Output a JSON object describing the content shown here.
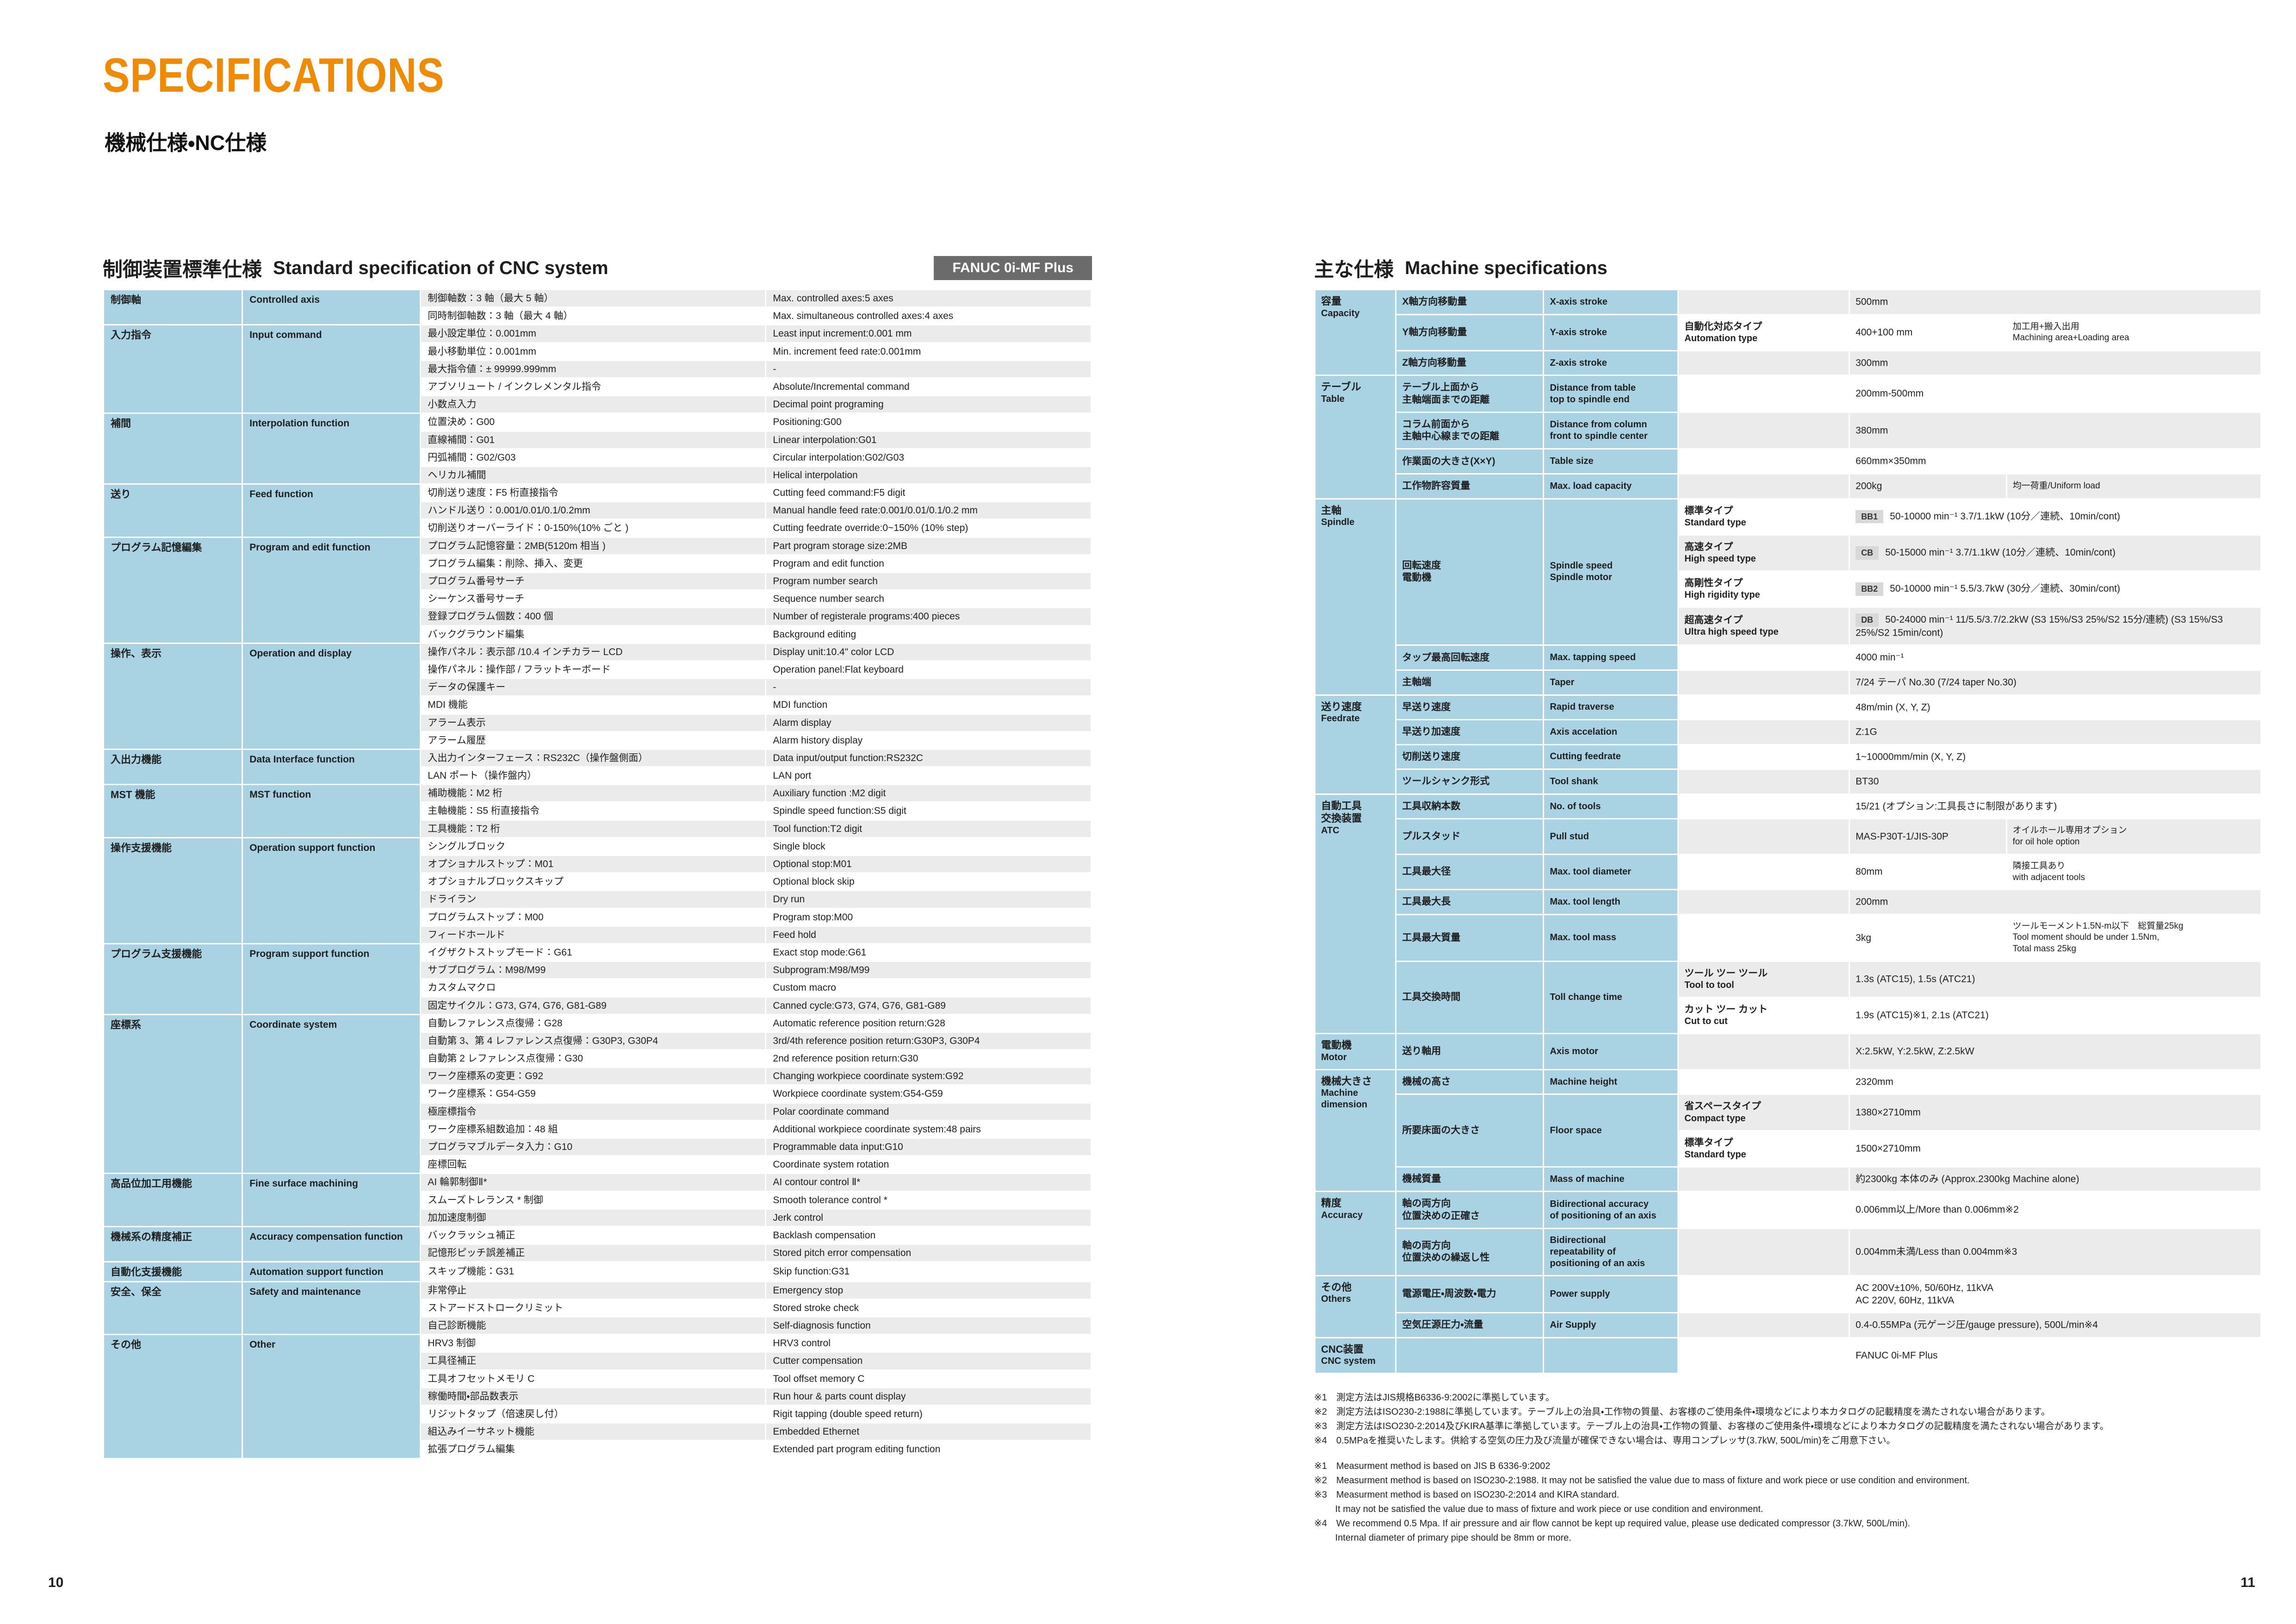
{
  "page": {
    "title": "SPECIFICATIONS",
    "subtitle": "機械仕様・NC仕様",
    "page_no_left": "10",
    "page_no_right": "11"
  },
  "colors": {
    "accent_orange": "#F08A00",
    "table_blue": "#A9D3E2",
    "stripe_gray": "#EBEBEB",
    "badge_gray": "#6B6B6B",
    "chip_gray": "#D8D8D8"
  },
  "cnc_table": {
    "heading_jp": "制御装置標準仕様",
    "heading_en": "Standard specification of CNC system",
    "badge": "FANUC 0i-MF Plus",
    "groups": [
      {
        "jp": "制御軸",
        "en": "Controlled axis",
        "rows": [
          [
            "制御軸数：3 軸（最大 5 軸）",
            "Max. controlled axes:5 axes"
          ],
          [
            "同時制御軸数：3 軸（最大 4 軸）",
            "Max. simultaneous controlled axes:4 axes"
          ]
        ]
      },
      {
        "jp": "入力指令",
        "en": "Input command",
        "rows": [
          [
            "最小設定単位：0.001mm",
            "Least input increment:0.001 mm"
          ],
          [
            "最小移動単位：0.001mm",
            "Min. increment feed rate:0.001mm"
          ],
          [
            "最大指令値：± 99999.999mm",
            "-"
          ],
          [
            "アブソリュート / インクレメンタル指令",
            "Absolute/Incremental command"
          ],
          [
            "小数点入力",
            "Decimal point programing"
          ]
        ]
      },
      {
        "jp": "補間",
        "en": "Interpolation function",
        "rows": [
          [
            "位置決め：G00",
            "Positioning:G00"
          ],
          [
            "直線補間：G01",
            "Linear interpolation:G01"
          ],
          [
            "円弧補間：G02/G03",
            "Circular interpolation:G02/G03"
          ],
          [
            "ヘリカル補間",
            "Helical interpolation"
          ]
        ]
      },
      {
        "jp": "送り",
        "en": "Feed function",
        "rows": [
          [
            "切削送り速度：F5 桁直接指令",
            "Cutting feed command:F5 digit"
          ],
          [
            "ハンドル送り：0.001/0.01/0.1/0.2mm",
            "Manual handle feed rate:0.001/0.01/0.1/0.2 mm"
          ],
          [
            "切削送りオーバーライド：0-150%(10% ごと )",
            "Cutting feedrate override:0~150% (10% step)"
          ]
        ]
      },
      {
        "jp": "プログラム記憶編集",
        "en": "Program and edit function",
        "rows": [
          [
            "プログラム記憶容量：2MB(5120m 相当 )",
            "Part program storage size:2MB"
          ],
          [
            "プログラム編集：削除、挿入、変更",
            "Program and edit function"
          ],
          [
            "プログラム番号サーチ",
            "Program number search"
          ],
          [
            "シーケンス番号サーチ",
            "Sequence number search"
          ],
          [
            "登録プログラム個数：400 個",
            "Number of registerale programs:400 pieces"
          ],
          [
            "バックグラウンド編集",
            "Background editing"
          ]
        ]
      },
      {
        "jp": "操作、表示",
        "en": "Operation and display",
        "rows": [
          [
            "操作パネル：表示部 /10.4 インチカラー LCD",
            "Display unit:10.4\" color LCD"
          ],
          [
            "操作パネル：操作部 / フラットキーボード",
            "Operation panel:Flat keyboard"
          ],
          [
            "データの保護キー",
            "-"
          ],
          [
            "MDI 機能",
            "MDI function"
          ],
          [
            "アラーム表示",
            "Alarm display"
          ],
          [
            "アラーム履歴",
            "Alarm history display"
          ]
        ]
      },
      {
        "jp": "入出力機能",
        "en": "Data Interface function",
        "rows": [
          [
            "入出力インターフェース：RS232C（操作盤側面）",
            "Data input/output function:RS232C"
          ],
          [
            "LAN ポート（操作盤内）",
            "LAN port"
          ]
        ]
      },
      {
        "jp": "MST 機能",
        "en": "MST function",
        "rows": [
          [
            "補助機能：M2 桁",
            "Auxiliary function :M2 digit"
          ],
          [
            "主軸機能：S5 桁直接指令",
            "Spindle speed function:S5 digit"
          ],
          [
            "工具機能：T2 桁",
            "Tool function:T2 digit"
          ]
        ]
      },
      {
        "jp": "操作支援機能",
        "en": "Operation support function",
        "rows": [
          [
            "シングルブロック",
            "Single block"
          ],
          [
            "オプショナルストップ：M01",
            "Optional stop:M01"
          ],
          [
            "オプショナルブロックスキップ",
            "Optional block skip"
          ],
          [
            "ドライラン",
            "Dry run"
          ],
          [
            "プログラムストップ：M00",
            "Program stop:M00"
          ],
          [
            "フィードホールド",
            "Feed hold"
          ]
        ]
      },
      {
        "jp": "プログラム支援機能",
        "en": "Program support function",
        "rows": [
          [
            "イグザクトストップモード：G61",
            "Exact stop mode:G61"
          ],
          [
            "サブプログラム：M98/M99",
            "Subprogram:M98/M99"
          ],
          [
            "カスタムマクロ",
            "Custom macro"
          ],
          [
            "固定サイクル：G73, G74, G76, G81-G89",
            "Canned cycle:G73, G74, G76, G81-G89"
          ]
        ]
      },
      {
        "jp": "座標系",
        "en": "Coordinate system",
        "rows": [
          [
            "自動レファレンス点復帰：G28",
            "Automatic reference position return:G28"
          ],
          [
            "自動第 3、第 4 レファレンス点復帰：G30P3, G30P4",
            "3rd/4th reference position return:G30P3, G30P4"
          ],
          [
            "自動第 2 レファレンス点復帰：G30",
            "2nd reference position return:G30"
          ],
          [
            "ワーク座標系の変更：G92",
            "Changing workpiece coordinate system:G92"
          ],
          [
            "ワーク座標系：G54-G59",
            "Workpiece coordinate system:G54-G59"
          ],
          [
            "極座標指令",
            "Polar coordinate command"
          ],
          [
            "ワーク座標系組数追加：48 組",
            "Additional workpiece coordinate system:48 pairs"
          ],
          [
            "プログラマブルデータ入力：G10",
            "Programmable data input:G10"
          ],
          [
            "座標回転",
            "Coordinate system rotation"
          ]
        ]
      },
      {
        "jp": "高品位加工用機能",
        "en": "Fine surface machining",
        "rows": [
          [
            "AI 輪郭制御Ⅱ*",
            "AI contour control Ⅱ*"
          ],
          [
            "スムーズトレランス * 制御",
            "Smooth tolerance control *"
          ],
          [
            "加加速度制御",
            "Jerk control"
          ]
        ]
      },
      {
        "jp": "機械系の精度補正",
        "en": "Accuracy compensation function",
        "rows": [
          [
            "バックラッシュ補正",
            "Backlash compensation"
          ],
          [
            "記憶形ピッチ誤差補正",
            "Stored pitch error compensation"
          ]
        ]
      },
      {
        "jp": "自動化支援機能",
        "en": "Automation support function",
        "rows": [
          [
            "スキップ機能：G31",
            "Skip function:G31"
          ]
        ]
      },
      {
        "jp": "安全、保全",
        "en": "Safety and maintenance",
        "rows": [
          [
            "非常停止",
            "Emergency stop"
          ],
          [
            "ストアードストロークリミット",
            "Stored stroke check"
          ],
          [
            "自己診断機能",
            "Self-diagnosis function"
          ]
        ]
      },
      {
        "jp": "その他",
        "en": "Other",
        "rows": [
          [
            "HRV3 制御",
            "HRV3 control"
          ],
          [
            "工具径補正",
            "Cutter compensation"
          ],
          [
            "工具オフセットメモリ C",
            "Tool offset memory C"
          ],
          [
            "稼働時間・部品数表示",
            "Run hour & parts count display"
          ],
          [
            "リジットタップ（倍速戻し付）",
            "Rigit tapping (double speed return)"
          ],
          [
            "組込みイーサネット機能",
            "Embedded Ethernet"
          ],
          [
            "拡張プログラム編集",
            "Extended part program editing function"
          ]
        ]
      }
    ]
  },
  "machine_table": {
    "heading_jp": "主な仕様",
    "heading_en": "Machine specifications",
    "groups": [
      {
        "jp": "容量",
        "en": "Capacity",
        "rows": [
          {
            "i": [
              "X軸方向移動量",
              "X-axis stroke"
            ],
            "v": "500mm"
          },
          {
            "i": [
              "Y軸方向移動量",
              "Y-axis stroke"
            ],
            "t": [
              "自動化対応タイプ",
              "Automation type"
            ],
            "v": "400+100 mm",
            "n": [
              "加工用+搬入出用",
              "Machining area+Loading area"
            ]
          },
          {
            "i": [
              "Z軸方向移動量",
              "Z-axis stroke"
            ],
            "v": "300mm"
          }
        ]
      },
      {
        "jp": "テーブル",
        "en": "Table",
        "rows": [
          {
            "i": [
              "テーブル上面から\n主軸端面までの距離",
              "Distance from table\ntop to spindle end"
            ],
            "v": "200mm-500mm"
          },
          {
            "i": [
              "コラム前面から\n主軸中心線までの距離",
              "Distance from column\nfront to spindle center"
            ],
            "v": "380mm"
          },
          {
            "i": [
              "作業面の大きさ(X×Y)",
              "Table size"
            ],
            "v": "660mm×350mm"
          },
          {
            "i": [
              "工作物許容質量",
              "Max. load capacity"
            ],
            "v": "200kg",
            "n": [
              "均一荷重/Uniform load"
            ]
          }
        ]
      },
      {
        "jp": "主軸",
        "en": "Spindle",
        "rows": [
          {
            "i": [
              "回転速度\n電動機",
              "Spindle speed\nSpindle motor"
            ],
            "is": 4,
            "t": [
              "標準タイプ",
              "Standard type"
            ],
            "b": "BB1",
            "v": "50-10000 min⁻¹ 3.7/1.1kW (10分／連続、10min/cont)"
          },
          {
            "t": [
              "高速タイプ",
              "High speed type"
            ],
            "b": "CB",
            "v": "50-15000 min⁻¹ 3.7/1.1kW (10分／連続、10min/cont)"
          },
          {
            "t": [
              "高剛性タイプ",
              "High rigidity type"
            ],
            "b": "BB2",
            "v": "50-10000 min⁻¹ 5.5/3.7kW (30分／連続、30min/cont)"
          },
          {
            "t": [
              "超高速タイプ",
              "Ultra high speed type"
            ],
            "b": "DB",
            "v": "50-24000 min⁻¹ 11/5.5/3.7/2.2kW (S3 15%/S3 25%/S2 15分/連続) (S3 15%/S3 25%/S2 15min/cont)"
          },
          {
            "i": [
              "タップ最高回転速度",
              "Max. tapping speed"
            ],
            "v": "4000 min⁻¹"
          },
          {
            "i": [
              "主軸端",
              "Taper"
            ],
            "v": "7/24 テーパ No.30 (7/24 taper No.30)"
          }
        ]
      },
      {
        "jp": "送り速度",
        "en": "Feedrate",
        "rows": [
          {
            "i": [
              "早送り速度",
              "Rapid traverse"
            ],
            "v": "48m/min (X, Y, Z)"
          },
          {
            "i": [
              "早送り加速度",
              "Axis accelation"
            ],
            "v": "Z:1G"
          },
          {
            "i": [
              "切削送り速度",
              "Cutting feedrate"
            ],
            "v": "1~10000mm/min (X, Y, Z)"
          },
          {
            "i": [
              "ツールシャンク形式",
              "Tool shank"
            ],
            "v": "BT30"
          }
        ]
      },
      {
        "jp": "自動工具\n交換装置",
        "en": "ATC",
        "rows": [
          {
            "i": [
              "工具収納本数",
              "No. of tools"
            ],
            "v": "15/21 (オプション:工具長さに制限があります)"
          },
          {
            "i": [
              "プルスタッド",
              "Pull stud"
            ],
            "v": "MAS-P30T-1/JIS-30P",
            "n": [
              "オイルホール専用オプション",
              "for oil hole option"
            ]
          },
          {
            "i": [
              "工具最大径",
              "Max. tool diameter"
            ],
            "v": "80mm",
            "n": [
              "隣接工具あり",
              "with adjacent tools"
            ]
          },
          {
            "i": [
              "工具最大長",
              "Max. tool length"
            ],
            "v": "200mm"
          },
          {
            "i": [
              "工具最大質量",
              "Max. tool mass"
            ],
            "v": "3kg",
            "n": [
              "ツールモーメント1.5N-m以下　総質量25kg",
              "Tool moment should be under 1.5Nm,",
              "Total mass 25kg"
            ]
          },
          {
            "i": [
              "工具交換時間",
              "Toll change time"
            ],
            "is": 2,
            "t": [
              "ツール ツー ツール",
              "Tool to tool"
            ],
            "v": "1.3s (ATC15), 1.5s (ATC21)"
          },
          {
            "t": [
              "カット ツー カット",
              "Cut to cut"
            ],
            "v": "1.9s (ATC15)※1, 2.1s (ATC21)"
          }
        ]
      },
      {
        "jp": "電動機",
        "en": "Motor",
        "rows": [
          {
            "i": [
              "送り軸用",
              "Axis motor"
            ],
            "v": "X:2.5kW, Y:2.5kW, Z:2.5kW"
          }
        ]
      },
      {
        "jp": "機械大きさ",
        "en": "Machine\ndimension",
        "rows": [
          {
            "i": [
              "機械の高さ",
              "Machine height"
            ],
            "v": "2320mm"
          },
          {
            "i": [
              "所要床面の大きさ",
              "Floor space"
            ],
            "is": 2,
            "t": [
              "省スペースタイプ",
              "Compact type"
            ],
            "v": "1380×2710mm"
          },
          {
            "t": [
              "標準タイプ",
              "Standard type"
            ],
            "v": "1500×2710mm"
          },
          {
            "i": [
              "機械質量",
              "Mass of machine"
            ],
            "v": "約2300kg 本体のみ (Approx.2300kg Machine alone)"
          }
        ]
      },
      {
        "jp": "精度",
        "en": "Accuracy",
        "rows": [
          {
            "i": [
              "軸の両方向\n位置決めの正確さ",
              "Bidirectional accuracy\nof positioning of an axis"
            ],
            "v": "0.006mm以上/More than 0.006mm※2"
          },
          {
            "i": [
              "軸の両方向\n位置決めの繰返し性",
              "Bidirectional\nrepeatability of\npositioning of an axis"
            ],
            "v": "0.004mm未満/Less than 0.004mm※3"
          }
        ]
      },
      {
        "jp": "その他",
        "en": "Others",
        "rows": [
          {
            "i": [
              "電源電圧・周波数・電力",
              "Power supply"
            ],
            "v": "AC 200V±10%, 50/60Hz, 11kVA\nAC 220V, 60Hz, 11kVA"
          },
          {
            "i": [
              "空気圧源圧力・流量",
              "Air Supply"
            ],
            "v": "0.4-0.55MPa (元ゲージ圧/gauge pressure), 500L/min※4"
          }
        ]
      },
      {
        "jp": "CNC装置",
        "en": "CNC system",
        "rows": [
          {
            "i": [
              "",
              ""
            ],
            "v": "FANUC 0i-MF Plus"
          }
        ]
      }
    ]
  },
  "footnotes": {
    "jp": [
      "※1　測定方法はJIS規格B6336-9:2002に準拠しています。",
      "※2　測定方法はISO230-2:1988に準拠しています。テーブル上の治具・工作物の質量、お客様のご使用条件・環境などにより本カタログの記載精度を満たされない場合があります。",
      "※3　測定方法はISO230-2:2014及びKIRA基準に準拠しています。テーブル上の治具・工作物の質量、お客様のご使用条件・環境などにより本カタログの記載精度を満たされない場合があります。",
      "※4　0.5MPaを推奨いたします。供給する空気の圧力及び流量が確保できない場合は、専用コンプレッサ(3.7kW, 500L/min)をご用意下さい。"
    ],
    "en": [
      "※1　Measurment method is based on JIS B 6336-9:2002",
      "※2　Measurment method is based on ISO230-2:1988. It may not be satisfied the value due to mass of fixture and work piece or use condition and environment.",
      "※3　Measurment method is based on ISO230-2:2014 and KIRA standard.",
      "　　 It may not be satisfied the value due to mass of fixture and work piece or use condition and environment.",
      "※4　We recommend 0.5 Mpa. If air pressure and air flow cannot be kept up required value, please use dedicated compressor (3.7kW, 500L/min).",
      "　　 Internal diameter of primary pipe should be 8mm or more."
    ]
  }
}
